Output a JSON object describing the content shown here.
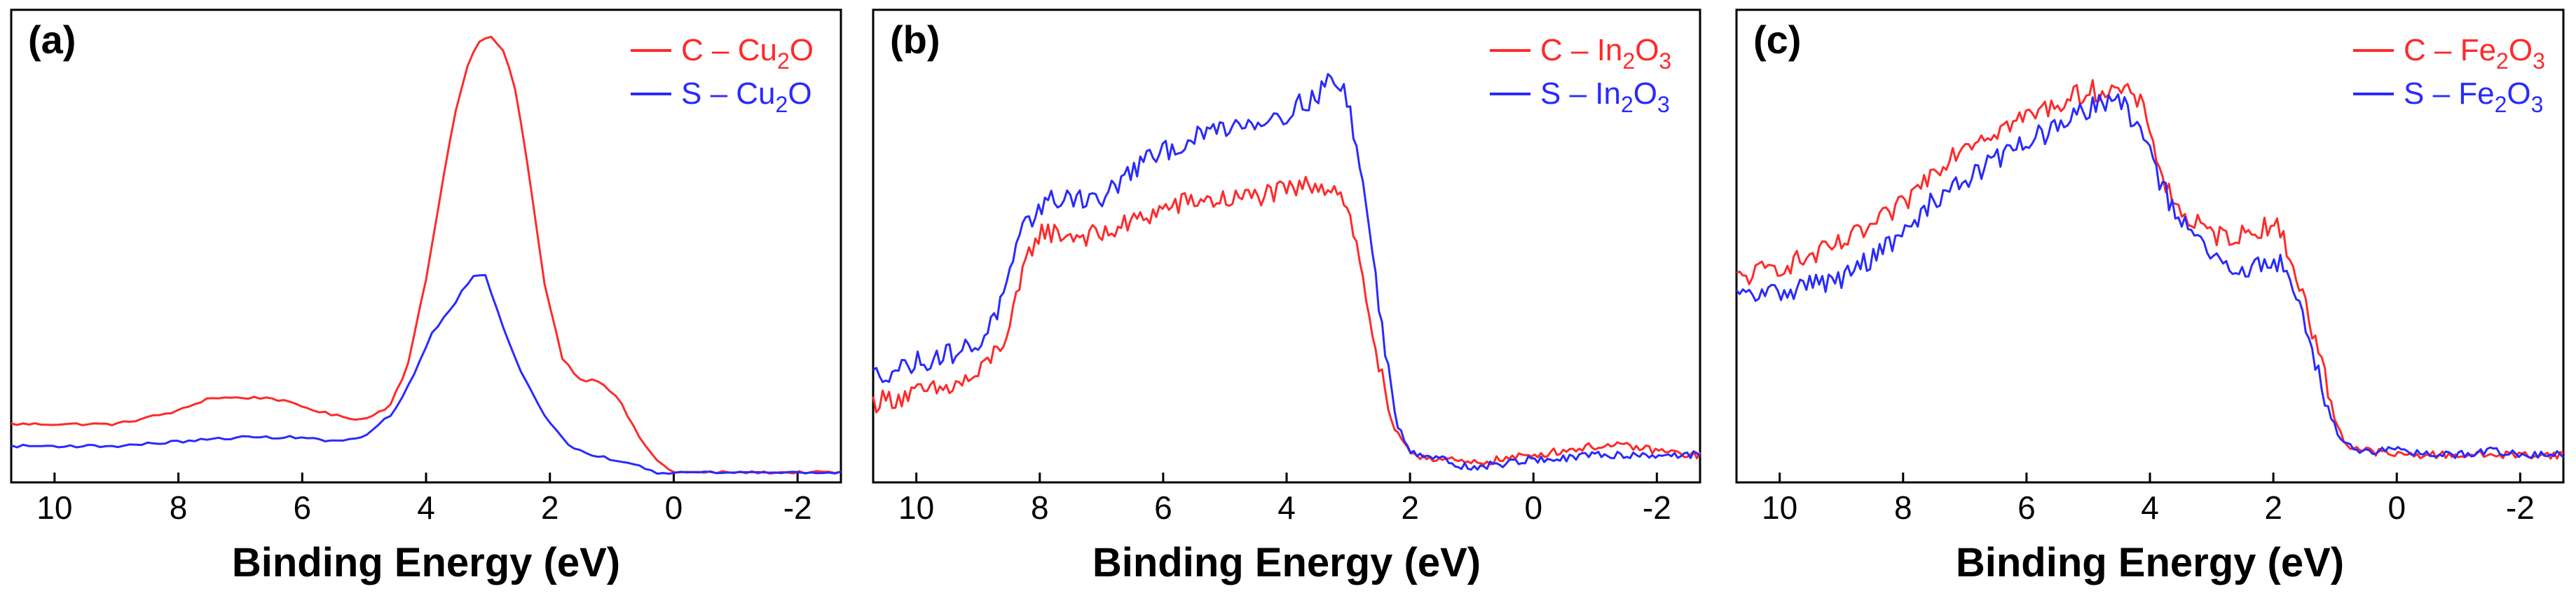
{
  "figure": {
    "panels_count": 3
  },
  "colors": {
    "C": "#ff2a2a",
    "S": "#2a2aff",
    "axis": "#000000"
  },
  "chart_data": [
    {
      "type": "line",
      "panel_label": "(a)",
      "xlabel": "Binding Energy (eV)",
      "ylabel": "",
      "xlim": [
        10.7,
        -2.7
      ],
      "ylim": [
        0,
        1.0
      ],
      "x_ticks": [
        10,
        8,
        6,
        4,
        2,
        0,
        -2
      ],
      "x_tick_labels": [
        "10",
        "8",
        "6",
        "4",
        "2",
        "0",
        "-2"
      ],
      "grid": false,
      "legend_position": "top-right",
      "noise": 0.0,
      "series": [
        {
          "name": "C – Cu2O",
          "legend_prefix": "C – Cu",
          "legend_sub": "2",
          "legend_suffix": "O",
          "color_key": "C",
          "x": [
            10.7,
            9,
            8,
            7.5,
            7,
            6.5,
            6,
            5.5,
            5,
            4.6,
            4.3,
            4.0,
            3.7,
            3.5,
            3.3,
            3.1,
            2.95,
            2.75,
            2.55,
            2.35,
            2.1,
            1.8,
            1.5,
            1.2,
            0.9,
            0.6,
            0.3,
            0,
            -1,
            -2,
            -2.7
          ],
          "y": [
            0.12,
            0.12,
            0.15,
            0.18,
            0.18,
            0.18,
            0.16,
            0.14,
            0.13,
            0.16,
            0.25,
            0.45,
            0.7,
            0.85,
            0.95,
            1.0,
            1.0,
            0.97,
            0.88,
            0.7,
            0.45,
            0.27,
            0.22,
            0.22,
            0.18,
            0.1,
            0.04,
            0.01,
            0.01,
            0.01,
            0.01
          ]
        },
        {
          "name": "S – Cu2O",
          "legend_prefix": "S – Cu",
          "legend_sub": "2",
          "legend_suffix": "O",
          "color_key": "S",
          "x": [
            10.7,
            9,
            8,
            7,
            6,
            5.5,
            5,
            4.5,
            4.2,
            3.9,
            3.6,
            3.4,
            3.2,
            3.05,
            2.8,
            2.5,
            2.1,
            1.7,
            1.3,
            1.0,
            0.6,
            0.3,
            0,
            -1,
            -2,
            -2.7
          ],
          "y": [
            0.07,
            0.07,
            0.08,
            0.09,
            0.09,
            0.08,
            0.09,
            0.15,
            0.23,
            0.33,
            0.38,
            0.43,
            0.46,
            0.46,
            0.36,
            0.25,
            0.14,
            0.07,
            0.05,
            0.04,
            0.03,
            0.01,
            0.01,
            0.01,
            0.01,
            0.01
          ]
        }
      ]
    },
    {
      "type": "line",
      "panel_label": "(b)",
      "xlabel": "Binding Energy (eV)",
      "ylabel": "",
      "xlim": [
        10.7,
        -2.7
      ],
      "ylim": [
        0,
        1.0
      ],
      "x_ticks": [
        10,
        8,
        6,
        4,
        2,
        0,
        -2
      ],
      "x_tick_labels": [
        "10",
        "8",
        "6",
        "4",
        "2",
        "0",
        "-2"
      ],
      "grid": false,
      "legend_position": "top-right",
      "noise": 0.025,
      "series": [
        {
          "name": "C – In2O3",
          "legend_prefix": "C – In",
          "legend_sub": "2",
          "legend_suffix": "O",
          "legend_sub2": "3",
          "color_key": "C",
          "x": [
            10.7,
            10,
            9.5,
            9,
            8.5,
            8.2,
            8.0,
            7.5,
            7,
            6.5,
            6,
            5.5,
            5,
            4.5,
            4,
            3.5,
            3.1,
            2.9,
            2.7,
            2.5,
            2.3,
            2.1,
            1.9,
            1.5,
            1.0,
            0.5,
            0,
            -0.5,
            -1,
            -1.5,
            -2,
            -2.5,
            -2.7
          ],
          "y": [
            0.17,
            0.19,
            0.2,
            0.23,
            0.33,
            0.5,
            0.56,
            0.55,
            0.55,
            0.58,
            0.61,
            0.63,
            0.63,
            0.64,
            0.65,
            0.67,
            0.65,
            0.55,
            0.4,
            0.25,
            0.12,
            0.07,
            0.05,
            0.04,
            0.03,
            0.04,
            0.05,
            0.06,
            0.07,
            0.07,
            0.06,
            0.05,
            0.05
          ]
        },
        {
          "name": "S – In2O3",
          "legend_prefix": "S – In",
          "legend_sub": "2",
          "legend_suffix": "O",
          "legend_sub2": "3",
          "color_key": "S",
          "x": [
            10.7,
            10,
            9.5,
            9,
            8.6,
            8.3,
            8.0,
            7.5,
            7,
            6.5,
            6,
            5.5,
            5,
            4.5,
            4,
            3.5,
            3.3,
            3.0,
            2.8,
            2.6,
            2.4,
            2.2,
            2.0,
            1.5,
            1.0,
            0.5,
            0,
            -0.5,
            -1,
            -1.5,
            -2,
            -2.5,
            -2.7
          ],
          "y": [
            0.23,
            0.26,
            0.28,
            0.3,
            0.4,
            0.55,
            0.62,
            0.64,
            0.63,
            0.7,
            0.74,
            0.77,
            0.8,
            0.81,
            0.83,
            0.87,
            0.91,
            0.86,
            0.7,
            0.5,
            0.28,
            0.12,
            0.06,
            0.04,
            0.02,
            0.03,
            0.04,
            0.04,
            0.05,
            0.05,
            0.05,
            0.05,
            0.05
          ]
        }
      ]
    },
    {
      "type": "line",
      "panel_label": "(c)",
      "xlabel": "Binding Energy (eV)",
      "ylabel": "",
      "xlim": [
        10.7,
        -2.7
      ],
      "ylim": [
        0,
        1.0
      ],
      "x_ticks": [
        10,
        8,
        6,
        4,
        2,
        0,
        -2
      ],
      "x_tick_labels": [
        "10",
        "8",
        "6",
        "4",
        "2",
        "0",
        "-2"
      ],
      "grid": false,
      "legend_position": "top-right",
      "noise": 0.025,
      "series": [
        {
          "name": "C – Fe2O3",
          "legend_prefix": "C – Fe",
          "legend_sub": "2",
          "legend_suffix": "O",
          "legend_sub2": "3",
          "color_key": "C",
          "x": [
            10.7,
            10,
            9.5,
            9,
            8.5,
            8,
            7.5,
            7,
            6.5,
            6,
            5.5,
            5,
            4.5,
            4.2,
            4.0,
            3.8,
            3.5,
            3.0,
            2.5,
            2.0,
            1.8,
            1.6,
            1.4,
            1.2,
            1.0,
            0.8,
            0.5,
            0,
            -0.5,
            -1,
            -1.5,
            -2,
            -2.5,
            -2.7
          ],
          "y": [
            0.45,
            0.48,
            0.5,
            0.53,
            0.57,
            0.62,
            0.7,
            0.76,
            0.79,
            0.82,
            0.85,
            0.88,
            0.88,
            0.86,
            0.8,
            0.68,
            0.6,
            0.55,
            0.55,
            0.58,
            0.53,
            0.45,
            0.35,
            0.25,
            0.13,
            0.07,
            0.06,
            0.05,
            0.05,
            0.05,
            0.05,
            0.05,
            0.05,
            0.05
          ]
        },
        {
          "name": "S – Fe2O3",
          "legend_prefix": "S – Fe",
          "legend_sub": "2",
          "legend_suffix": "O",
          "legend_sub2": "3",
          "color_key": "S",
          "x": [
            10.7,
            10,
            9.5,
            9,
            8.5,
            8,
            7.5,
            7,
            6.5,
            6,
            5.5,
            5,
            4.7,
            4.4,
            4.1,
            3.8,
            3.5,
            3.0,
            2.5,
            2.0,
            1.8,
            1.6,
            1.4,
            1.2,
            1.0,
            0.8,
            0.5,
            0,
            -0.5,
            -1,
            -1.5,
            -2,
            -2.5,
            -2.7
          ],
          "y": [
            0.41,
            0.42,
            0.44,
            0.45,
            0.5,
            0.55,
            0.63,
            0.68,
            0.72,
            0.77,
            0.79,
            0.84,
            0.86,
            0.84,
            0.78,
            0.66,
            0.58,
            0.5,
            0.46,
            0.5,
            0.47,
            0.4,
            0.3,
            0.2,
            0.11,
            0.07,
            0.06,
            0.06,
            0.05,
            0.05,
            0.06,
            0.05,
            0.05,
            0.05
          ]
        }
      ]
    }
  ]
}
